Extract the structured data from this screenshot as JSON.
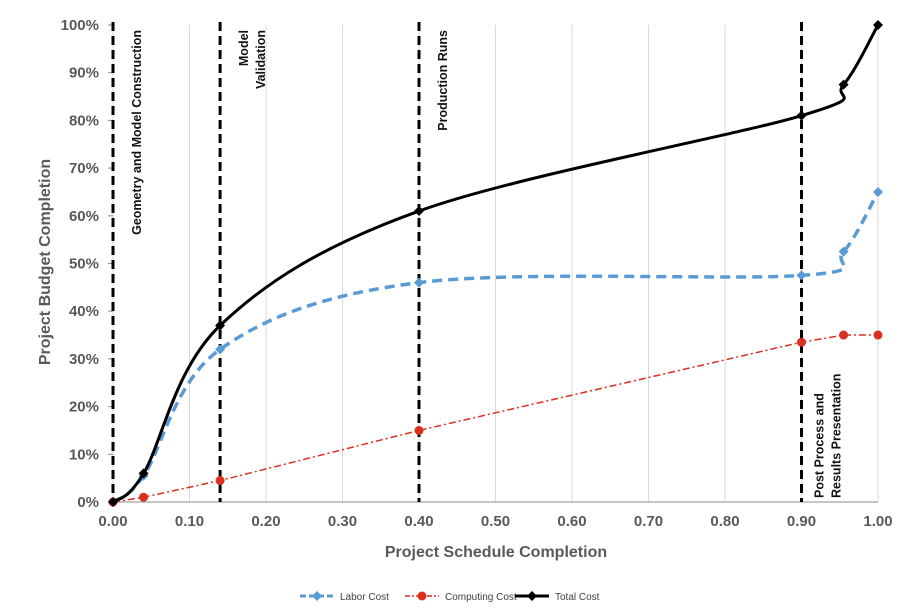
{
  "chart_data": {
    "type": "line",
    "xlabel": "Project Schedule Completion",
    "ylabel": "Project Budget Completion",
    "xlim": [
      0,
      1
    ],
    "ylim": [
      0,
      1
    ],
    "x_ticks": [
      0,
      0.1,
      0.2,
      0.3,
      0.4,
      0.5,
      0.6,
      0.7,
      0.8,
      0.9,
      1.0
    ],
    "x_tick_labels": [
      "0.00",
      "0.10",
      "0.20",
      "0.30",
      "0.40",
      "0.50",
      "0.60",
      "0.70",
      "0.80",
      "0.90",
      "1.00"
    ],
    "y_ticks": [
      0,
      0.1,
      0.2,
      0.3,
      0.4,
      0.5,
      0.6,
      0.7,
      0.8,
      0.9,
      1.0
    ],
    "y_tick_labels": [
      "0%",
      "10%",
      "20%",
      "30%",
      "40%",
      "50%",
      "60%",
      "70%",
      "80%",
      "90%",
      "100%"
    ],
    "grid": "vertical",
    "legend_position": "bottom",
    "series": [
      {
        "name": "Labor Cost",
        "color": "#5b9bd5",
        "style": "dashed",
        "marker": "diamond",
        "points": [
          [
            0.0,
            0.0
          ],
          [
            0.04,
            0.055
          ],
          [
            0.14,
            0.32
          ],
          [
            0.4,
            0.46
          ],
          [
            0.9,
            0.475
          ],
          [
            0.955,
            0.525
          ],
          [
            1.0,
            0.65
          ]
        ]
      },
      {
        "name": "Computing Cost",
        "color": "#d9301f",
        "style": "dashdot",
        "marker": "circle",
        "points": [
          [
            0.0,
            0.0
          ],
          [
            0.04,
            0.01
          ],
          [
            0.14,
            0.045
          ],
          [
            0.4,
            0.15
          ],
          [
            0.9,
            0.335
          ],
          [
            0.955,
            0.35
          ],
          [
            1.0,
            0.35
          ]
        ]
      },
      {
        "name": "Total Cost",
        "color": "#000000",
        "style": "solid",
        "marker": "diamond",
        "points": [
          [
            0.0,
            0.0
          ],
          [
            0.04,
            0.06
          ],
          [
            0.14,
            0.37
          ],
          [
            0.4,
            0.61
          ],
          [
            0.9,
            0.81
          ],
          [
            0.955,
            0.875
          ],
          [
            1.0,
            1.0
          ]
        ]
      }
    ],
    "phase_markers": [
      {
        "x": 0.0,
        "label": "Geometry and Model Construction"
      },
      {
        "x": 0.14,
        "label": "Model\nValidation"
      },
      {
        "x": 0.4,
        "label": "Production Runs"
      },
      {
        "x": 0.9,
        "label": "Post Process and\nResults Presentation"
      }
    ]
  }
}
